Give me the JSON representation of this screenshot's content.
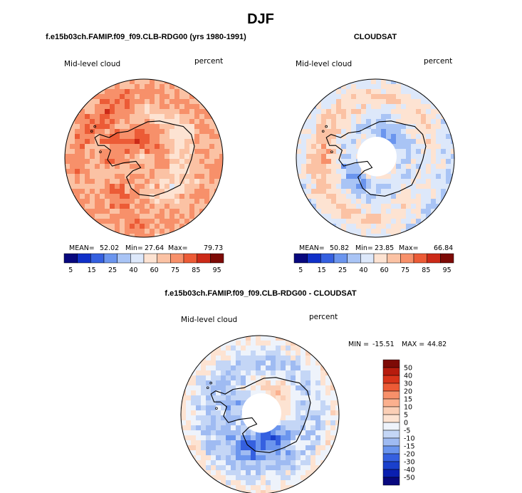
{
  "page_title": "DJF",
  "chart_data": [
    {
      "type": "heatmap",
      "projection": "south-polar-stereographic",
      "title": "f.e15b03ch.FAMIP.f09_f09.CLB-RDG00 (yrs 1980-1991)",
      "left_label": "Mid-level cloud",
      "right_label": "percent",
      "stats": {
        "mean_label": "MEAN=",
        "mean": "52.02",
        "min_label": "Min=",
        "min": "27.64",
        "max_label": "Max=",
        "max": "79.73"
      },
      "levels": [
        "5",
        "15",
        "25",
        "40",
        "60",
        "75",
        "85",
        "95"
      ],
      "colors": [
        "#08087e",
        "#1030c8",
        "#3560e0",
        "#6b95ee",
        "#a9c4f5",
        "#dde8fa",
        "#fde3d2",
        "#fbc2a4",
        "#f7906a",
        "#ec5b36",
        "#cc2a18",
        "#7d0a06"
      ],
      "field": {
        "base": 0.62,
        "blobs": [
          [
            200,
            0.42,
            0.55
          ],
          [
            270,
            0.3,
            0.55
          ],
          [
            120,
            0.55,
            0.65
          ],
          [
            230,
            0.7,
            0.45
          ]
        ]
      },
      "has_data_hole": false
    },
    {
      "type": "heatmap",
      "projection": "south-polar-stereographic",
      "title": "CLOUDSAT",
      "left_label": "Mid-level cloud",
      "right_label": "percent",
      "stats": {
        "mean_label": "MEAN=",
        "mean": "50.82",
        "min_label": "Min=",
        "min": "23.85",
        "max_label": "Max=",
        "max": "66.84"
      },
      "levels": [
        "5",
        "15",
        "25",
        "40",
        "60",
        "75",
        "85",
        "95"
      ],
      "colors": [
        "#08087e",
        "#1030c8",
        "#3560e0",
        "#6b95ee",
        "#a9c4f5",
        "#dde8fa",
        "#fde3d2",
        "#fbc2a4",
        "#f7906a",
        "#ec5b36",
        "#cc2a18",
        "#7d0a06"
      ],
      "field": {
        "base": 0.5,
        "blobs": [
          [
            310,
            0.3,
            -0.55
          ],
          [
            140,
            0.35,
            -0.45
          ],
          [
            190,
            0.6,
            0.45
          ],
          [
            20,
            0.85,
            -0.35
          ]
        ]
      },
      "has_data_hole": true
    },
    {
      "type": "heatmap",
      "projection": "south-polar-stereographic",
      "title": "f.e15b03ch.FAMIP.f09_f09.CLB-RDG00 - CLOUDSAT",
      "left_label": "Mid-level cloud",
      "right_label": "percent",
      "stats": {
        "min_label": "MIN =",
        "min": "-15.51",
        "max_label": "MAX =",
        "max": "44.82"
      },
      "levels": [
        "50",
        "40",
        "30",
        "20",
        "15",
        "10",
        "5",
        "0",
        "-5",
        "-10",
        "-15",
        "-20",
        "-30",
        "-40",
        "-50"
      ],
      "colors": [
        "#7d0a06",
        "#b71c0e",
        "#d8341a",
        "#ec5b36",
        "#f7906a",
        "#fbb08e",
        "#fbcfb6",
        "#fde3d2",
        "#eef3fb",
        "#c4d6f6",
        "#9fbbf2",
        "#6b95ee",
        "#3560e0",
        "#1a40cc",
        "#0a1fb0",
        "#08087e"
      ],
      "field": {
        "base": 0.55,
        "blobs": [
          [
            60,
            0.3,
            0.95
          ],
          [
            110,
            0.4,
            0.7
          ],
          [
            310,
            0.35,
            -0.4
          ],
          [
            200,
            0.3,
            0.55
          ]
        ]
      },
      "has_data_hole": true
    }
  ]
}
